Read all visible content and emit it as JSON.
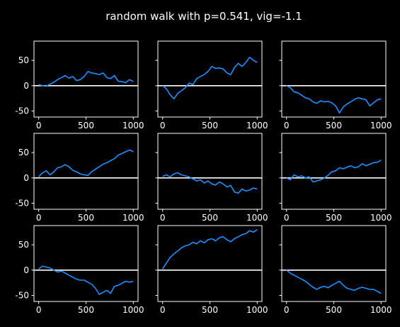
{
  "figure": {
    "title": "random walk with p=0.541, vig=-1.1",
    "background": "#000000",
    "foreground": "#ffffff",
    "line_color": "#1e90ff"
  },
  "chart_data": [
    {
      "type": "line",
      "row": 0,
      "col": 0,
      "xlim": [
        -50,
        1050
      ],
      "ylim": [
        -62,
        88
      ],
      "xticks": [
        0,
        500,
        1000
      ],
      "yticks": [
        -50,
        0,
        50
      ],
      "hline": 0,
      "x": [
        0,
        40,
        80,
        120,
        160,
        200,
        240,
        280,
        320,
        360,
        400,
        440,
        480,
        520,
        560,
        600,
        640,
        680,
        720,
        760,
        800,
        840,
        880,
        920,
        960,
        1000
      ],
      "y": [
        2,
        0,
        -1,
        3,
        7,
        12,
        16,
        20,
        15,
        18,
        10,
        12,
        18,
        28,
        25,
        24,
        22,
        25,
        16,
        14,
        20,
        9,
        8,
        6,
        12,
        8
      ]
    },
    {
      "type": "line",
      "row": 0,
      "col": 1,
      "xlim": [
        -50,
        1050
      ],
      "ylim": [
        -62,
        88
      ],
      "xticks": [
        0,
        500,
        1000
      ],
      "yticks": [
        -50,
        0,
        50
      ],
      "hline": 0,
      "x": [
        0,
        40,
        80,
        120,
        160,
        200,
        240,
        280,
        320,
        360,
        400,
        440,
        480,
        520,
        560,
        600,
        640,
        680,
        720,
        760,
        800,
        840,
        880,
        920,
        960,
        1000
      ],
      "y": [
        0,
        -6,
        -18,
        -26,
        -15,
        -10,
        -4,
        5,
        2,
        14,
        18,
        22,
        28,
        38,
        34,
        35,
        33,
        25,
        22,
        36,
        44,
        38,
        46,
        56,
        50,
        46
      ]
    },
    {
      "type": "line",
      "row": 0,
      "col": 2,
      "xlim": [
        -50,
        1050
      ],
      "ylim": [
        -62,
        88
      ],
      "xticks": [
        0,
        500,
        1000
      ],
      "yticks": [
        -50,
        0,
        50
      ],
      "hline": 0,
      "x": [
        0,
        40,
        80,
        120,
        160,
        200,
        240,
        280,
        320,
        360,
        400,
        440,
        480,
        520,
        560,
        600,
        640,
        680,
        720,
        760,
        800,
        840,
        880,
        920,
        960,
        1000
      ],
      "y": [
        0,
        -4,
        -12,
        -14,
        -19,
        -24,
        -26,
        -32,
        -35,
        -30,
        -32,
        -31,
        -34,
        -40,
        -54,
        -42,
        -36,
        -32,
        -27,
        -24,
        -26,
        -28,
        -40,
        -34,
        -28,
        -26
      ]
    },
    {
      "type": "line",
      "row": 1,
      "col": 0,
      "xlim": [
        -50,
        1050
      ],
      "ylim": [
        -62,
        88
      ],
      "xticks": [
        0,
        500,
        1000
      ],
      "yticks": [
        -50,
        0,
        50
      ],
      "hline": 0,
      "x": [
        0,
        40,
        80,
        120,
        160,
        200,
        240,
        280,
        320,
        360,
        400,
        440,
        480,
        520,
        560,
        600,
        640,
        680,
        720,
        760,
        800,
        840,
        880,
        920,
        960,
        1000
      ],
      "y": [
        2,
        10,
        14,
        6,
        12,
        20,
        22,
        26,
        22,
        15,
        12,
        8,
        6,
        5,
        12,
        17,
        22,
        27,
        30,
        34,
        38,
        45,
        48,
        52,
        55,
        52
      ]
    },
    {
      "type": "line",
      "row": 1,
      "col": 1,
      "xlim": [
        -50,
        1050
      ],
      "ylim": [
        -62,
        88
      ],
      "xticks": [
        0,
        500,
        1000
      ],
      "yticks": [
        -50,
        0,
        50
      ],
      "hline": 0,
      "x": [
        0,
        40,
        80,
        120,
        160,
        200,
        240,
        280,
        320,
        360,
        400,
        440,
        480,
        520,
        560,
        600,
        640,
        680,
        720,
        760,
        800,
        840,
        880,
        920,
        960,
        1000
      ],
      "y": [
        3,
        6,
        2,
        8,
        10,
        6,
        4,
        2,
        -2,
        -6,
        -4,
        -10,
        -6,
        -12,
        -14,
        -8,
        -12,
        -18,
        -15,
        -28,
        -30,
        -22,
        -26,
        -24,
        -20,
        -22
      ]
    },
    {
      "type": "line",
      "row": 1,
      "col": 2,
      "xlim": [
        -50,
        1050
      ],
      "ylim": [
        -62,
        88
      ],
      "xticks": [
        0,
        500,
        1000
      ],
      "yticks": [
        -50,
        0,
        50
      ],
      "hline": 0,
      "x": [
        0,
        40,
        80,
        120,
        160,
        200,
        240,
        280,
        320,
        360,
        400,
        440,
        480,
        520,
        560,
        600,
        640,
        680,
        720,
        760,
        800,
        840,
        880,
        920,
        960,
        1000
      ],
      "y": [
        0,
        -4,
        6,
        2,
        4,
        0,
        2,
        -8,
        -6,
        -4,
        0,
        5,
        12,
        14,
        20,
        18,
        21,
        24,
        20,
        22,
        28,
        24,
        27,
        30,
        31,
        35
      ]
    },
    {
      "type": "line",
      "row": 2,
      "col": 0,
      "xlim": [
        -50,
        1050
      ],
      "ylim": [
        -62,
        88
      ],
      "xticks": [
        0,
        500,
        1000
      ],
      "yticks": [
        -50,
        0,
        50
      ],
      "hline": 0,
      "x": [
        0,
        40,
        80,
        120,
        160,
        200,
        240,
        280,
        320,
        360,
        400,
        440,
        480,
        520,
        560,
        600,
        640,
        680,
        720,
        760,
        800,
        840,
        880,
        920,
        960,
        1000
      ],
      "y": [
        2,
        8,
        6,
        4,
        0,
        -4,
        -2,
        -6,
        -10,
        -14,
        -18,
        -20,
        -20,
        -24,
        -28,
        -36,
        -48,
        -44,
        -40,
        -46,
        -32,
        -30,
        -26,
        -22,
        -24,
        -22
      ]
    },
    {
      "type": "line",
      "row": 2,
      "col": 1,
      "xlim": [
        -50,
        1050
      ],
      "ylim": [
        -62,
        88
      ],
      "xticks": [
        0,
        500,
        1000
      ],
      "yticks": [
        -50,
        0,
        50
      ],
      "hline": 0,
      "x": [
        0,
        40,
        80,
        120,
        160,
        200,
        240,
        280,
        320,
        360,
        400,
        440,
        480,
        520,
        560,
        600,
        640,
        680,
        720,
        760,
        800,
        840,
        880,
        920,
        960,
        1000
      ],
      "y": [
        2,
        14,
        25,
        32,
        38,
        44,
        48,
        50,
        55,
        52,
        58,
        54,
        60,
        62,
        58,
        64,
        66,
        60,
        56,
        62,
        66,
        70,
        72,
        78,
        75,
        80
      ]
    },
    {
      "type": "line",
      "row": 2,
      "col": 2,
      "xlim": [
        -50,
        1050
      ],
      "ylim": [
        -62,
        88
      ],
      "xticks": [
        0,
        500,
        1000
      ],
      "yticks": [
        -50,
        0,
        50
      ],
      "hline": 0,
      "x": [
        0,
        40,
        80,
        120,
        160,
        200,
        240,
        280,
        320,
        360,
        400,
        440,
        480,
        520,
        560,
        600,
        640,
        680,
        720,
        760,
        800,
        840,
        880,
        920,
        960,
        1000
      ],
      "y": [
        0,
        -6,
        -10,
        -14,
        -18,
        -22,
        -28,
        -34,
        -38,
        -34,
        -32,
        -35,
        -30,
        -26,
        -22,
        -30,
        -36,
        -38,
        -40,
        -36,
        -34,
        -36,
        -38,
        -38,
        -42,
        -46
      ]
    }
  ]
}
